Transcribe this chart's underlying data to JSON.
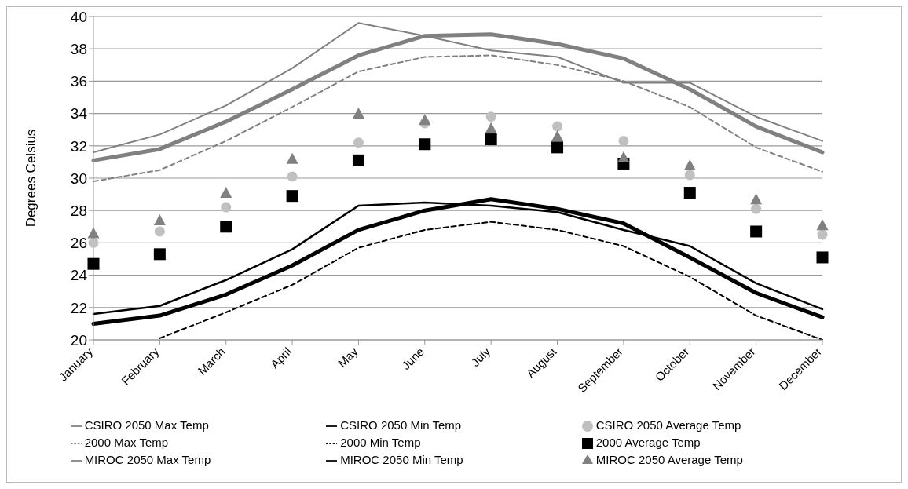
{
  "chart_data": {
    "type": "line",
    "ylabel": "Degrees Celsius",
    "categories": [
      "January",
      "February",
      "March",
      "April",
      "May",
      "June",
      "July",
      "August",
      "September",
      "October",
      "November",
      "December"
    ],
    "ylim": [
      20,
      40
    ],
    "yticks": [
      20,
      22,
      24,
      26,
      28,
      30,
      32,
      34,
      36,
      38,
      40
    ],
    "grid": "y",
    "legend": "bottom",
    "series": [
      {
        "name": "CSIRO 2050 Max Temp",
        "color": "#808080",
        "line_style": "solid",
        "values": [
          31.1,
          31.8,
          33.5,
          35.5,
          37.6,
          38.8,
          38.9,
          38.3,
          37.4,
          35.5,
          33.2,
          31.6
        ]
      },
      {
        "name": "CSIRO 2050 Min Temp",
        "color": "#000000",
        "line_style": "solid",
        "values": [
          21.0,
          21.5,
          22.8,
          24.6,
          26.8,
          28.0,
          28.7,
          28.1,
          27.2,
          25.1,
          22.9,
          21.4
        ]
      },
      {
        "name": "CSIRO 2050 Average Temp",
        "type": "scatter",
        "color": "#c0c0c0",
        "marker": "circle",
        "values": [
          26.0,
          26.7,
          28.2,
          30.1,
          32.2,
          33.4,
          33.8,
          33.2,
          32.3,
          30.2,
          28.1,
          26.5
        ]
      },
      {
        "name": "2000 Max Temp",
        "color": "#808080",
        "line_style": "dashed",
        "values": [
          29.8,
          30.5,
          32.3,
          34.4,
          36.6,
          37.5,
          37.6,
          37.0,
          36.0,
          34.4,
          31.9,
          30.4
        ]
      },
      {
        "name": "2000 Min Temp",
        "color": "#000000",
        "line_style": "dashed",
        "values": [
          null,
          20.1,
          21.7,
          23.4,
          25.7,
          26.8,
          27.3,
          26.8,
          25.8,
          23.9,
          21.5,
          20.0
        ]
      },
      {
        "name": "2000 Average Temp",
        "type": "scatter",
        "color": "#000000",
        "marker": "square",
        "values": [
          24.7,
          25.3,
          27.0,
          28.9,
          31.1,
          32.1,
          32.4,
          31.9,
          30.9,
          29.1,
          26.7,
          25.1
        ]
      },
      {
        "name": "MIROC 2050 Max Temp",
        "color": "#808080",
        "line_style": "solid",
        "values": [
          31.6,
          32.7,
          34.5,
          36.8,
          39.6,
          38.8,
          37.9,
          37.5,
          35.9,
          35.9,
          33.8,
          32.3
        ]
      },
      {
        "name": "MIROC 2050 Min Temp",
        "color": "#000000",
        "line_style": "solid",
        "values": [
          21.6,
          22.1,
          23.7,
          25.6,
          28.3,
          28.5,
          28.3,
          27.9,
          26.8,
          25.8,
          23.5,
          21.9
        ]
      },
      {
        "name": "MIROC 2050 Average Temp",
        "type": "scatter",
        "color": "#808080",
        "marker": "triangle",
        "values": [
          26.6,
          27.4,
          29.1,
          31.2,
          34.0,
          33.6,
          33.1,
          32.6,
          31.3,
          30.8,
          28.7,
          27.1
        ]
      }
    ]
  }
}
